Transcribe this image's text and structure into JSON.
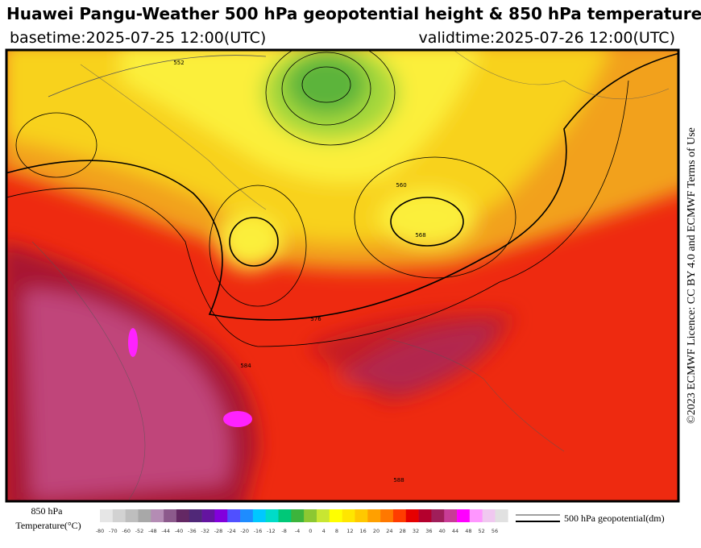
{
  "header": {
    "title": "Huawei Pangu-Weather 500 hPa geopotential height & 850 hPa temperature",
    "basetime": "basetime:2025-07-25 12:00(UTC)",
    "validtime": "validtime:2025-07-26 12:00(UTC)"
  },
  "licence": "©2023 ECMWF Licence: CC BY 4.0 and ECMWF Terms of Use",
  "contour_labels": [
    "552",
    "560",
    "568",
    "576",
    "584",
    "588"
  ],
  "legend": {
    "temperature_label": [
      "850 hPa",
      "Temperature(°C)"
    ],
    "ticks": [
      -80,
      -70,
      -60,
      -52,
      -48,
      -44,
      -40,
      -36,
      -32,
      -28,
      -24,
      -20,
      -16,
      -12,
      -8,
      -4,
      0,
      4,
      8,
      12,
      16,
      20,
      24,
      28,
      32,
      36,
      40,
      44,
      48,
      52,
      56
    ],
    "colors": [
      "#e6e6e6",
      "#d2d2d2",
      "#bebebe",
      "#a8a8a8",
      "#b48cb4",
      "#8c5a8c",
      "#642864",
      "#502878",
      "#6414a0",
      "#8200dc",
      "#5050ff",
      "#1e8cff",
      "#00c8ff",
      "#00dcc8",
      "#00c878",
      "#3cb43c",
      "#8cc832",
      "#c8e632",
      "#ffff00",
      "#ffe600",
      "#ffc800",
      "#ffa000",
      "#ff7800",
      "#ff3c00",
      "#e60000",
      "#b4002d",
      "#a01e5a",
      "#c83c96",
      "#ff00ff",
      "#ff96ff",
      "#f0c8f0",
      "#e1e1e1"
    ],
    "contour_label": "500 hPa geopotential(dm)"
  }
}
